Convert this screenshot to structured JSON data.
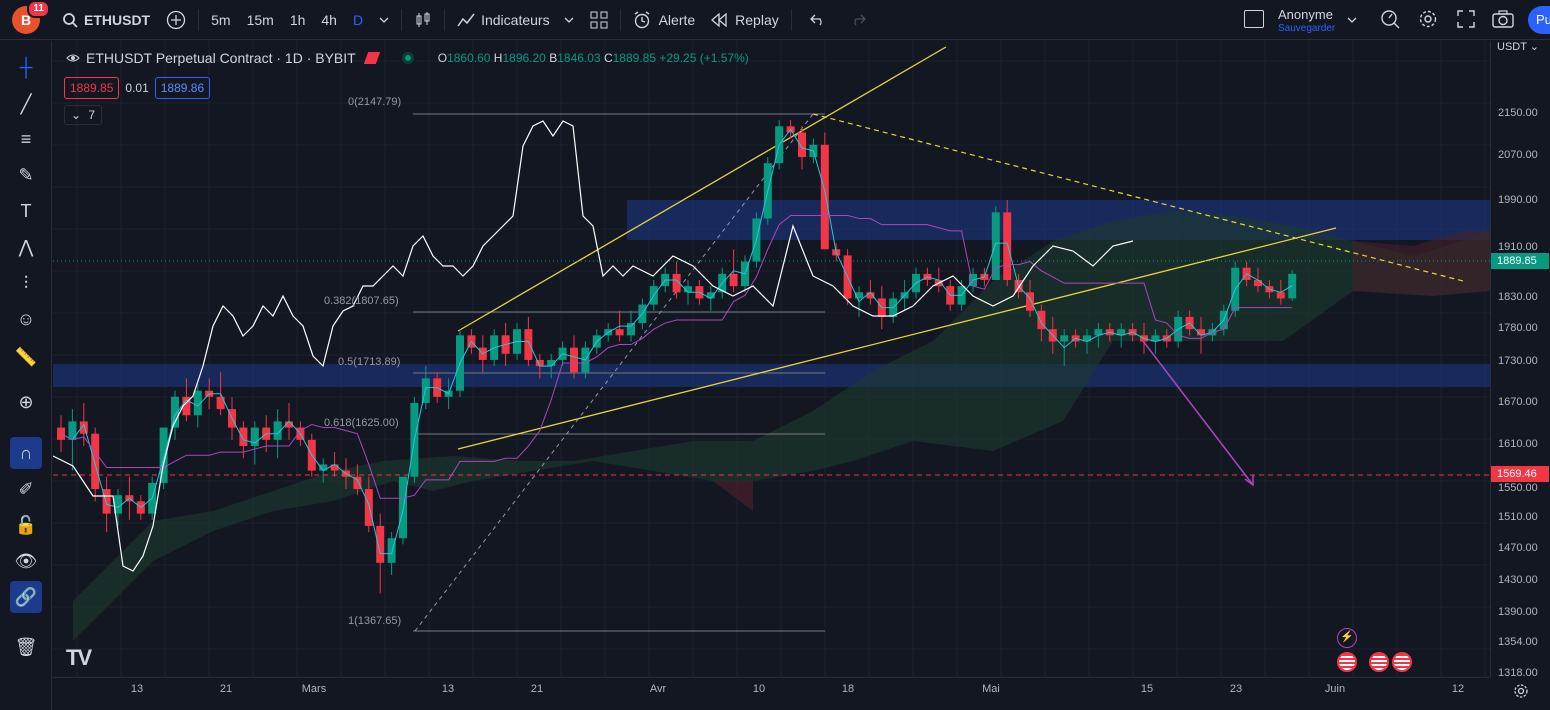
{
  "topbar": {
    "logo_text": "B",
    "notifications": "11",
    "symbol": "ETHUSDT",
    "intervals": [
      "5m",
      "15m",
      "1h",
      "4h",
      "D"
    ],
    "indicators_label": "Indicateurs",
    "alert_label": "Alerte",
    "replay_label": "Replay",
    "user_name": "Anonyme",
    "user_sub": "Sauvegarder",
    "publish_label": "Pu"
  },
  "legend": {
    "title": "ETHUSDT Perpetual Contract · 1D · BYBIT",
    "o_label": "O",
    "o": "1860.60",
    "h_label": "H",
    "h": "1896.20",
    "b_label": "B",
    "b": "1846.03",
    "c_label": "C",
    "c": "1889.85",
    "change": "+29.25 (+1.57%)",
    "sell_price": "1889.85",
    "spread": "0.01",
    "buy_price": "1889.86",
    "indicator_count": "7"
  },
  "fib_labels": [
    "0(2147.79)",
    "0.382(1807.65)",
    "0.5(1713.89)",
    "0.618(1625.00)",
    "1(1367.65)"
  ],
  "price_axis": {
    "currency": "USDT",
    "ticks": [
      "2150.00",
      "2070.00",
      "1990.00",
      "1910.00",
      "1830.00",
      "1780.00",
      "1730.00",
      "1670.00",
      "1610.00",
      "1550.00",
      "1510.00",
      "1470.00",
      "1430.00",
      "1390.00",
      "1354.00",
      "1318.00"
    ],
    "current_price": "1889.85",
    "current_price_color": "#089981",
    "alert_price": "1569.46",
    "alert_color": "#f23645"
  },
  "time_axis": [
    "13",
    "21",
    "Mars",
    "13",
    "21",
    "Avr",
    "10",
    "18",
    "Mai",
    "15",
    "23",
    "Juin",
    "12"
  ],
  "colors": {
    "up": "#089981",
    "down": "#f23645",
    "zone": "#1e3a8a",
    "trendline": "#e8d33a",
    "ichimoku_tenkan": "#26c6da",
    "ichimoku_kijun": "#ab47bc",
    "rsi_line": "#ffffff"
  },
  "left_tools": [
    "crosshair-icon",
    "trendline-icon",
    "fib-icon",
    "brush-icon",
    "text-icon",
    "pattern-icon",
    "forecast-icon",
    "emoji-icon",
    "ruler-icon",
    "zoom-icon",
    "magnet-icon",
    "lock-drawing-icon",
    "lock-icon",
    "eye-icon",
    "link-icon",
    "trash-icon"
  ]
}
